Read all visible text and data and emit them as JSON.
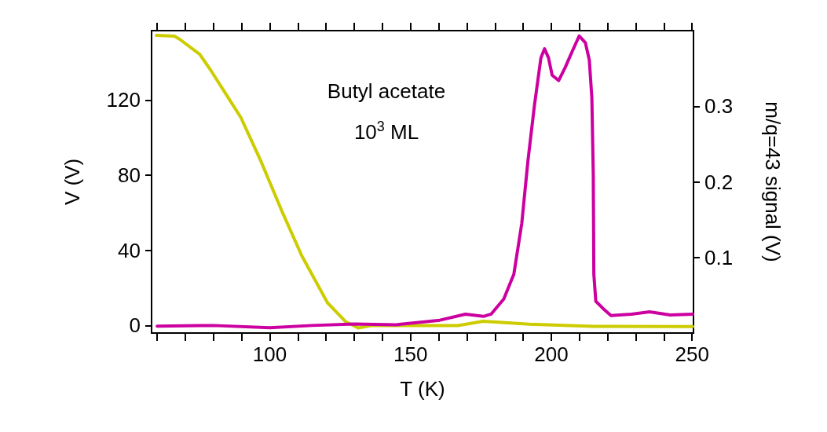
{
  "chart_data": {
    "type": "line",
    "xlabel": "T (K)",
    "ylabel": "V (V)",
    "y2label": "m/q=43 signal (V)",
    "annotations": [
      "Butyl acetate",
      "10$^{3}$ ML"
    ],
    "xlim": [
      58,
      250.5
    ],
    "xticks": [
      {
        "value": 60,
        "label": null
      },
      {
        "value": 70,
        "label": null
      },
      {
        "value": 80,
        "label": null
      },
      {
        "value": 90,
        "label": null
      },
      100,
      {
        "value": 110,
        "label": null
      },
      {
        "value": 120,
        "label": null
      },
      {
        "value": 130,
        "label": null
      },
      {
        "value": 140,
        "label": null
      },
      150,
      {
        "value": 160,
        "label": null
      },
      {
        "value": 170,
        "label": null
      },
      {
        "value": 180,
        "label": null
      },
      {
        "value": 190,
        "label": null
      },
      200,
      {
        "value": 210,
        "label": null
      },
      {
        "value": 220,
        "label": null
      },
      {
        "value": 230,
        "label": null
      },
      {
        "value": 240,
        "label": null
      },
      250
    ],
    "ylim": [
      -4,
      157
    ],
    "yticks": [
      0,
      40,
      80,
      120
    ],
    "y2lim": [
      0,
      0.4
    ],
    "y2ticks": [
      0.1,
      0.2,
      0.3
    ],
    "grid": false,
    "marker": "none",
    "line_style": "solid",
    "series": [
      {
        "color": "#cccc00",
        "x": [
          59.7,
          66.1,
          67.9,
          75.1,
          78.8,
          85.1,
          89.7,
          96.9,
          104.2,
          111.4,
          120.5,
          126.9,
          131.4,
          135.9,
          166.8,
          175.8,
          192.2,
          214.9,
          250.2
        ],
        "values": [
          154.5,
          154.1,
          152.5,
          144.4,
          136.4,
          121.6,
          110.8,
          87.3,
          61.2,
          37.0,
          12.1,
          2.1,
          -1.3,
          0,
          0,
          2.3,
          0.7,
          -0.4,
          -0.6
        ]
      },
      {
        "color": "#cc00a0",
        "axis": "y2",
        "x": [
          60,
          80,
          100,
          115,
          130,
          145,
          160.4,
          169.5,
          175.9,
          178.6,
          183.1,
          186.7,
          189.5,
          191.7,
          194.0,
          196.3,
          197.6,
          199.0,
          200.3,
          202.6,
          204.9,
          207.6,
          209.9,
          212.1,
          213.5,
          214.4,
          214.9,
          215.1,
          215.8,
          218.5,
          221.2,
          228.5,
          234.9,
          242.2,
          250.2
        ],
        "values": [
          0.009,
          0.01,
          0.007,
          0.01,
          0.012,
          0.011,
          0.017,
          0.025,
          0.022,
          0.025,
          0.045,
          0.078,
          0.145,
          0.228,
          0.301,
          0.364,
          0.376,
          0.364,
          0.341,
          0.334,
          0.351,
          0.374,
          0.393,
          0.384,
          0.361,
          0.311,
          0.211,
          0.078,
          0.042,
          0.032,
          0.023,
          0.025,
          0.028,
          0.024,
          0.025
        ]
      }
    ]
  }
}
